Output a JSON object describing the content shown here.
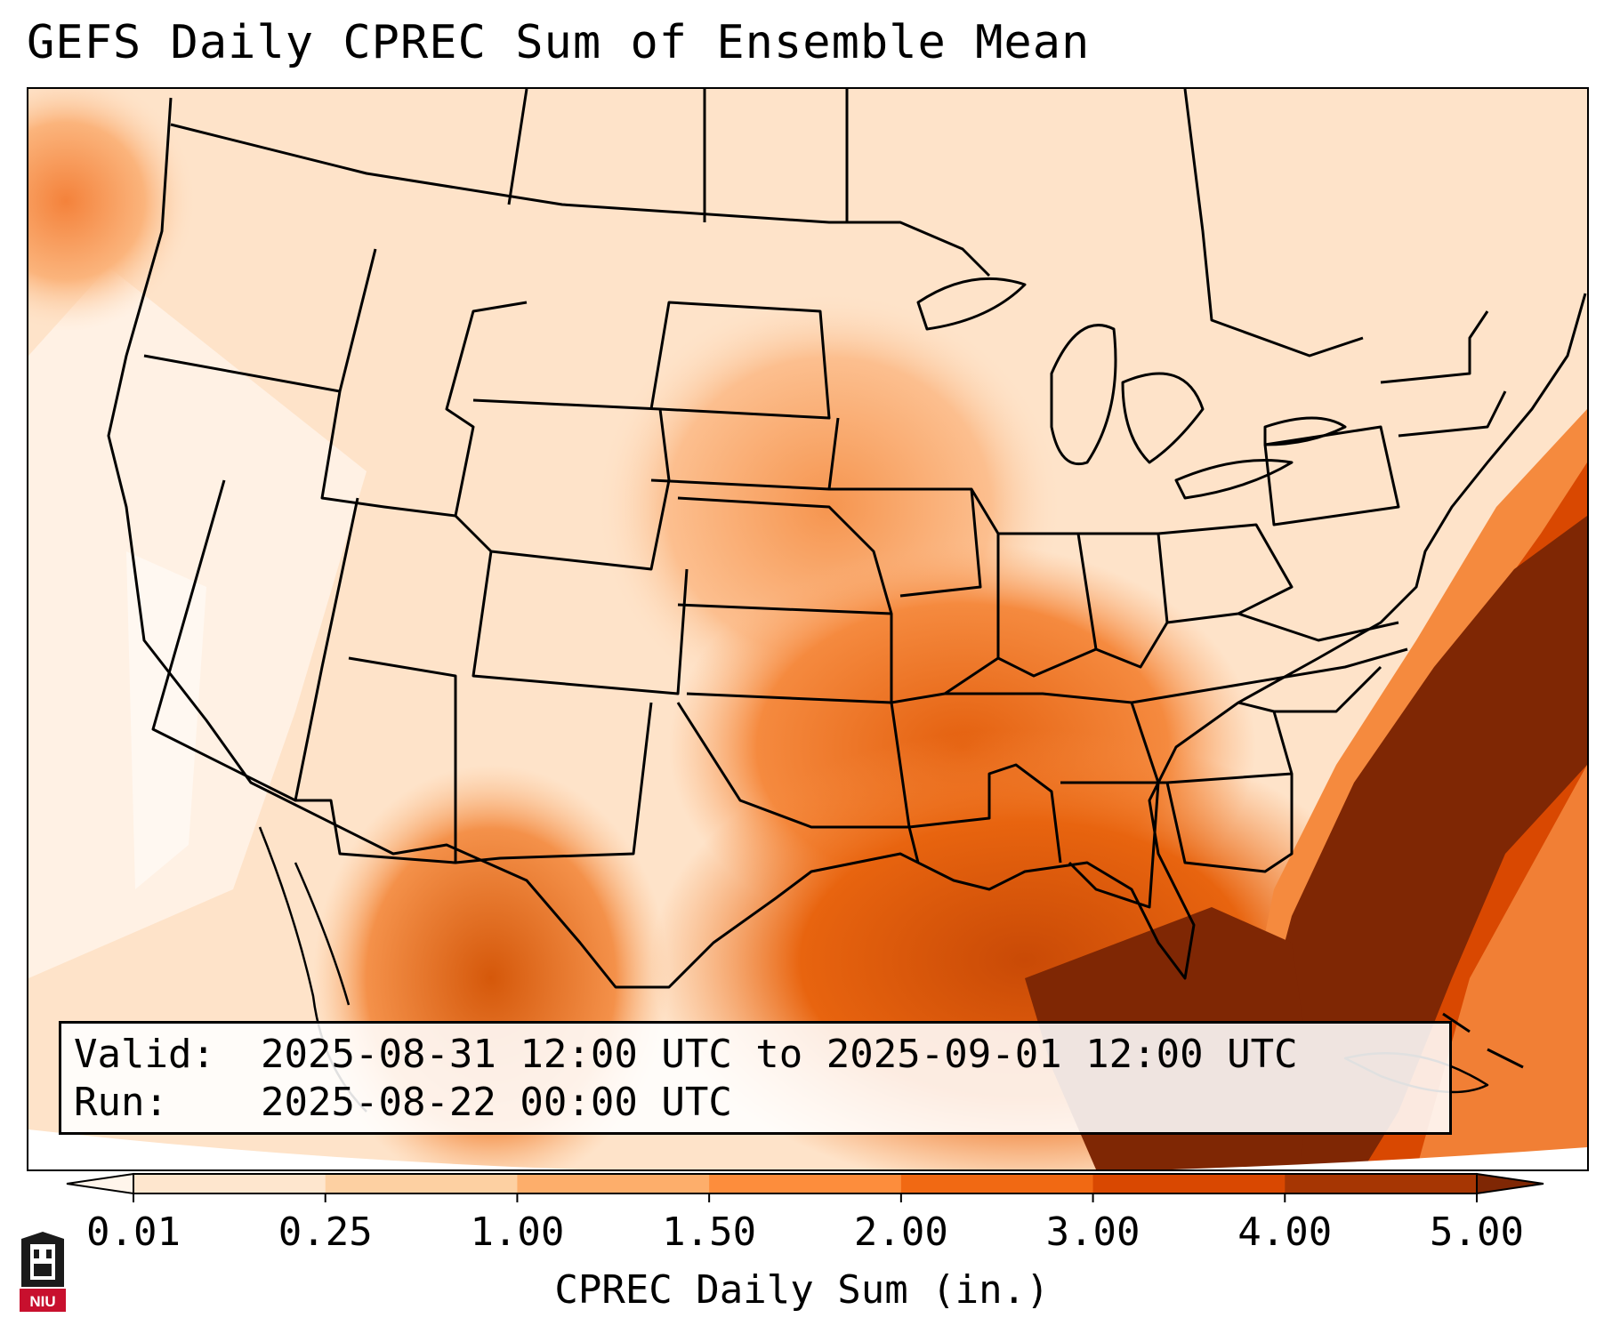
{
  "title": "GEFS Daily CPREC Sum of Ensemble Mean",
  "info": {
    "valid_label": "Valid:",
    "valid_value": "2025-08-31 12:00 UTC to 2025-09-01 12:00 UTC",
    "run_label": "Run:",
    "run_value": "2025-08-22 00:00 UTC"
  },
  "colorbar": {
    "title": "CPREC Daily Sum (in.)",
    "ticks": [
      "0.01",
      "0.25",
      "1.00",
      "1.50",
      "2.00",
      "3.00",
      "4.00",
      "5.00"
    ],
    "colors": [
      "#fff5eb",
      "#fee6ce",
      "#fdd0a2",
      "#fdae6b",
      "#fd8d3c",
      "#f16913",
      "#d94801",
      "#a63603",
      "#7f2704"
    ]
  },
  "map": {
    "region": "Contiguous United States",
    "variable": "convective precipitation, daily sum (in.)",
    "color_scale": "oranges"
  },
  "logo": {
    "text": "NIU",
    "icon": "niu-logo-icon"
  }
}
